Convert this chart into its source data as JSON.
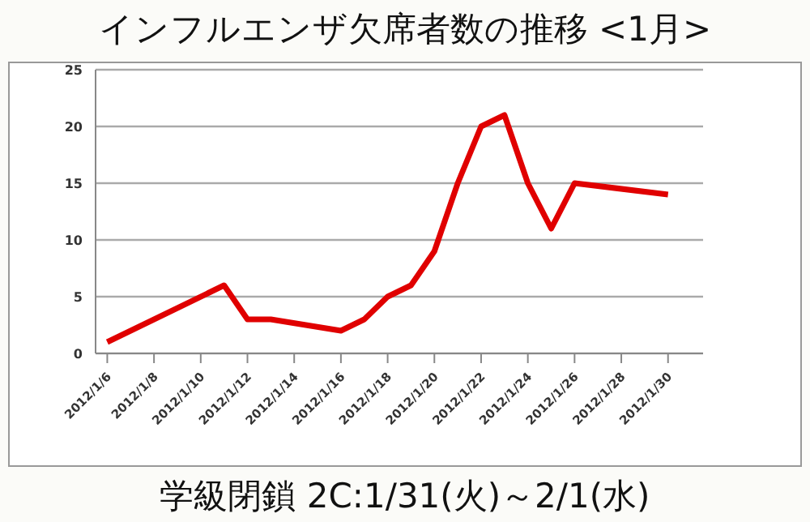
{
  "chart_data": {
    "type": "line",
    "title": "インフルエンザ欠席者数の推移 <1月>",
    "x": [
      "2012-01-06",
      "2012-01-11",
      "2012-01-12",
      "2012-01-13",
      "2012-01-16",
      "2012-01-17",
      "2012-01-18",
      "2012-01-19",
      "2012-01-20",
      "2012-01-21",
      "2012-01-22",
      "2012-01-23",
      "2012-01-24",
      "2012-01-25",
      "2012-01-26",
      "2012-01-30"
    ],
    "series": [
      {
        "color": "#e00000",
        "values": [
          1,
          6,
          3,
          3,
          2,
          3,
          5,
          6,
          9,
          15,
          20,
          21,
          15,
          11,
          15,
          14
        ]
      }
    ],
    "xlim": [
      "2012-01-05T12:00",
      "2012-01-31T12:00"
    ],
    "xticks": [
      {
        "value": "2012-01-06",
        "label": "2012/1/6"
      },
      {
        "value": "2012-01-08",
        "label": "2012/1/8"
      },
      {
        "value": "2012-01-10",
        "label": "2012/1/10"
      },
      {
        "value": "2012-01-12",
        "label": "2012/1/12"
      },
      {
        "value": "2012-01-14",
        "label": "2012/1/14"
      },
      {
        "value": "2012-01-16",
        "label": "2012/1/16"
      },
      {
        "value": "2012-01-18",
        "label": "2012/1/18"
      },
      {
        "value": "2012-01-20",
        "label": "2012/1/20"
      },
      {
        "value": "2012-01-22",
        "label": "2012/1/22"
      },
      {
        "value": "2012-01-24",
        "label": "2012/1/24"
      },
      {
        "value": "2012-01-26",
        "label": "2012/1/26"
      },
      {
        "value": "2012-01-28",
        "label": "2012/1/28"
      },
      {
        "value": "2012-01-30",
        "label": "2012/1/30"
      }
    ],
    "ylim": [
      0,
      25
    ],
    "yticks": [
      0,
      5,
      10,
      15,
      20,
      25
    ],
    "grid": "y",
    "marker": "none",
    "line_style": "solid",
    "annotations": [
      "学級閉鎖 2C:1/31(火)～2/1(水)"
    ]
  }
}
